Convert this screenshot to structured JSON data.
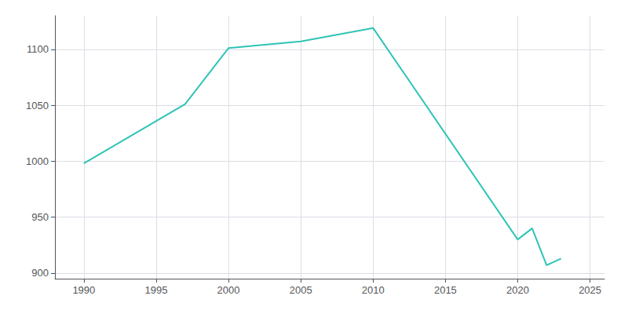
{
  "chart_data": {
    "type": "line",
    "x": [
      1990,
      1997,
      2000,
      2005,
      2010,
      2020,
      2021,
      2022,
      2023
    ],
    "values": [
      998,
      1051,
      1101,
      1107,
      1119,
      930,
      940,
      907,
      913
    ],
    "color": "#2ec4b6",
    "xlim": [
      1988,
      2026
    ],
    "ylim": [
      895,
      1130
    ],
    "xticks": [
      1990,
      1995,
      2000,
      2005,
      2010,
      2015,
      2020,
      2025
    ],
    "yticks": [
      900,
      950,
      1000,
      1050,
      1100
    ],
    "grid": true
  }
}
